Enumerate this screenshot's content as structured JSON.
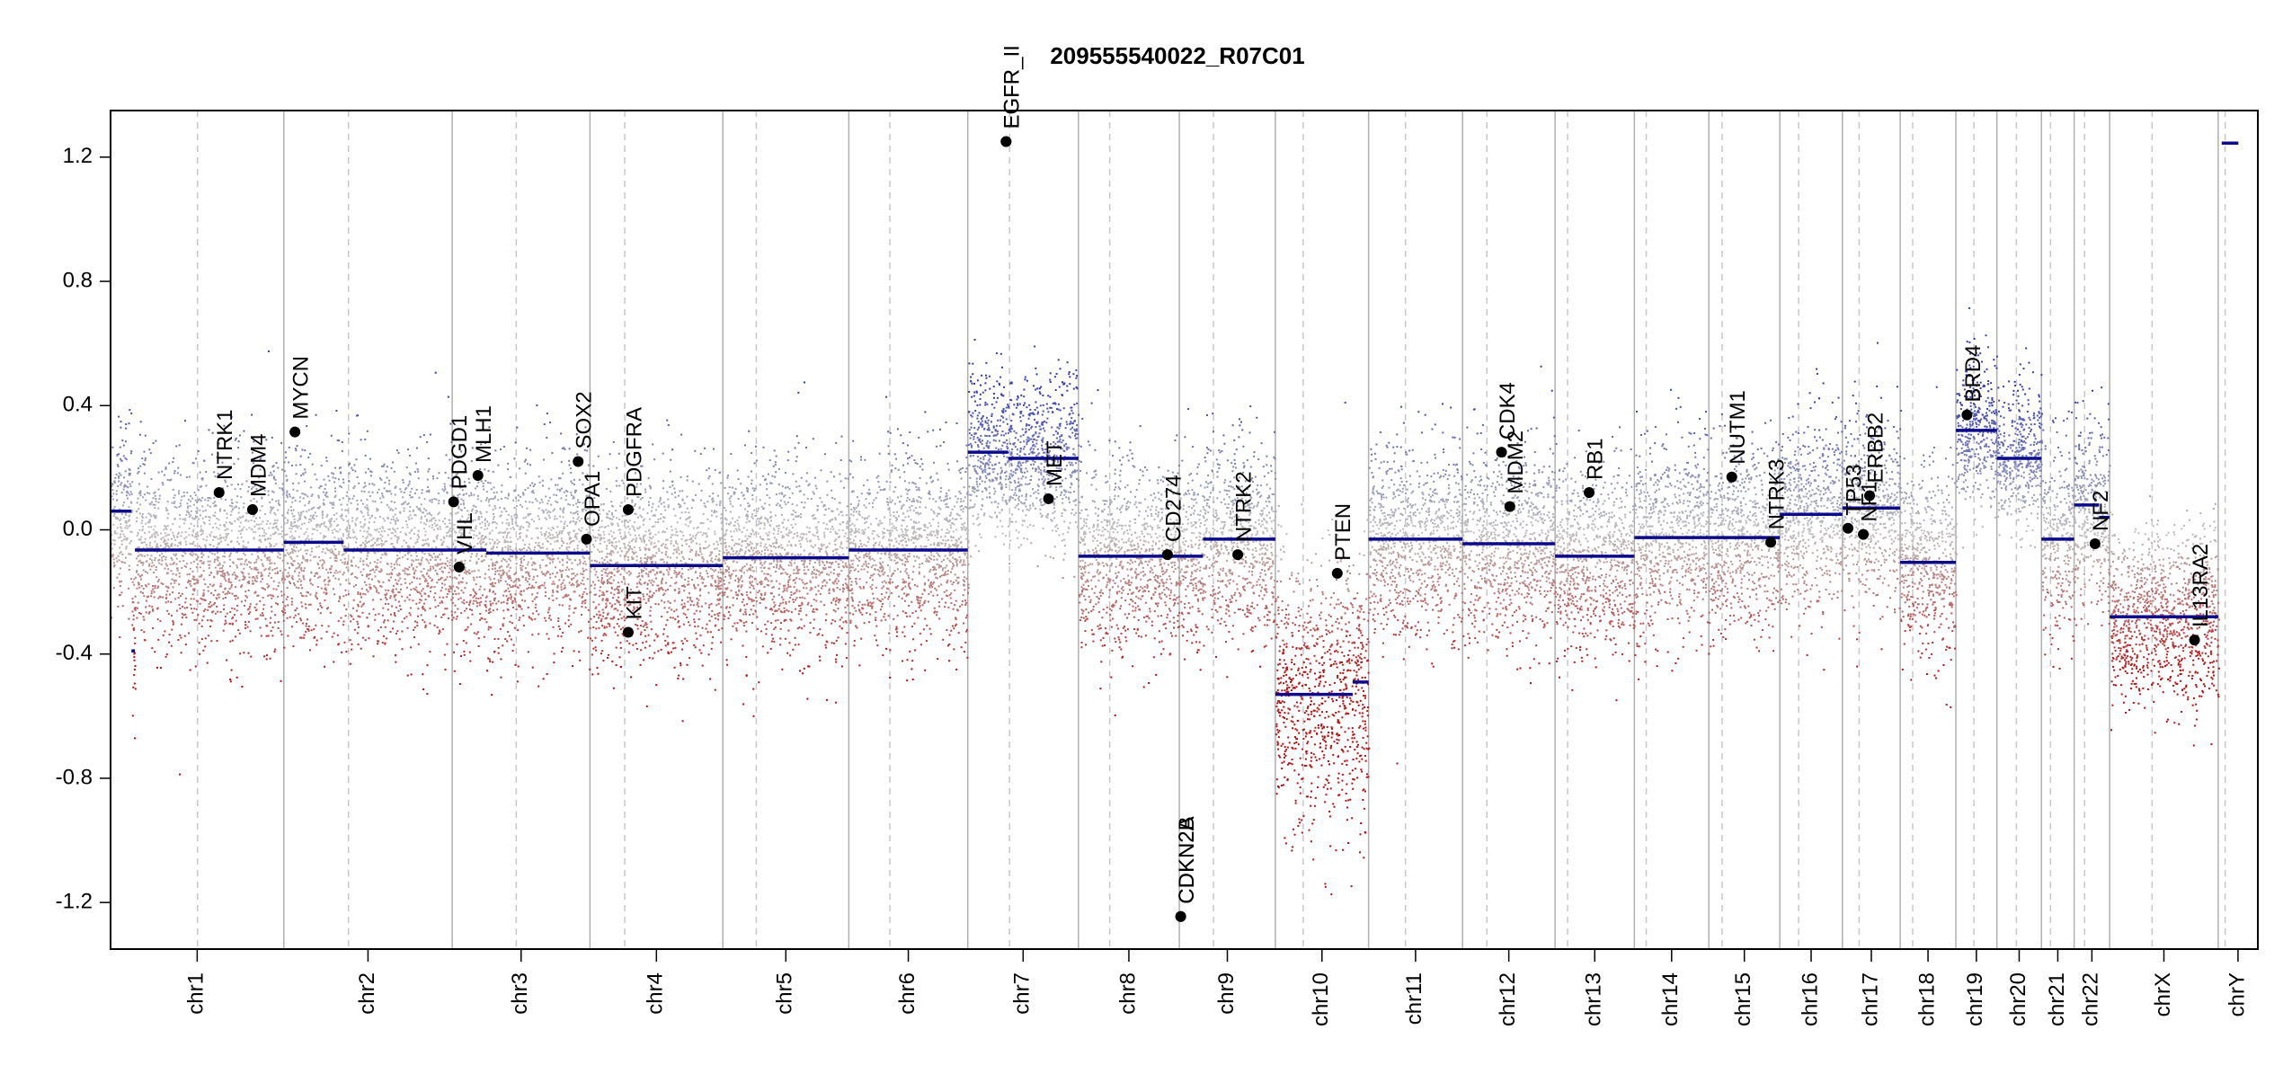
{
  "chart_data": {
    "type": "scatter",
    "title": "209555540022_R07C01",
    "xlabel": "",
    "ylabel": "",
    "ylim": [
      -1.35,
      1.35
    ],
    "y_ticks": [
      -1.2,
      -0.8,
      -0.4,
      0.0,
      0.4,
      0.8,
      1.2
    ],
    "y_tick_labels": [
      "-1.2",
      "-0.8",
      "-0.4",
      "0.0",
      "0.4",
      "0.8",
      "1.2"
    ],
    "grid": false,
    "colors": {
      "gain": "#3a46a8",
      "loss": "#b01a1a",
      "neutral": "#b4b4b4",
      "segment": "#0a0a8a",
      "gene_point": "#000000",
      "boundary": "#b0b0b0",
      "centromere": "#c8c8c8"
    },
    "chromosomes": [
      {
        "name": "chr1",
        "start": 0,
        "end": 249,
        "centromere": 125
      },
      {
        "name": "chr2",
        "start": 249,
        "end": 491,
        "centromere": 342
      },
      {
        "name": "chr3",
        "start": 491,
        "end": 689,
        "centromere": 583
      },
      {
        "name": "chr4",
        "start": 689,
        "end": 880,
        "centromere": 739
      },
      {
        "name": "chr5",
        "start": 880,
        "end": 1061,
        "centromere": 928
      },
      {
        "name": "chr6",
        "start": 1061,
        "end": 1232,
        "centromere": 1120
      },
      {
        "name": "chr7",
        "start": 1232,
        "end": 1391,
        "centromere": 1292
      },
      {
        "name": "chr8",
        "start": 1391,
        "end": 1536,
        "centromere": 1436
      },
      {
        "name": "chr9",
        "start": 1536,
        "end": 1674,
        "centromere": 1585
      },
      {
        "name": "chr10",
        "start": 1674,
        "end": 1808,
        "centromere": 1714
      },
      {
        "name": "chr11",
        "start": 1808,
        "end": 1943,
        "centromere": 1861
      },
      {
        "name": "chr12",
        "start": 1943,
        "end": 2076,
        "centromere": 1978
      },
      {
        "name": "chr13",
        "start": 2076,
        "end": 2190,
        "centromere": 2094
      },
      {
        "name": "chr14",
        "start": 2190,
        "end": 2297,
        "centromere": 2207
      },
      {
        "name": "chr15",
        "start": 2297,
        "end": 2399,
        "centromere": 2316
      },
      {
        "name": "chr16",
        "start": 2399,
        "end": 2489,
        "centromere": 2426
      },
      {
        "name": "chr17",
        "start": 2489,
        "end": 2572,
        "centromere": 2513
      },
      {
        "name": "chr18",
        "start": 2572,
        "end": 2652,
        "centromere": 2590
      },
      {
        "name": "chr19",
        "start": 2652,
        "end": 2711,
        "centromere": 2678
      },
      {
        "name": "chr20",
        "start": 2711,
        "end": 2775,
        "centromere": 2739
      },
      {
        "name": "chr21",
        "start": 2775,
        "end": 2822,
        "centromere": 2788
      },
      {
        "name": "chr22",
        "start": 2822,
        "end": 2873,
        "centromere": 2837
      },
      {
        "name": "chrX",
        "start": 2873,
        "end": 3029,
        "centromere": 2934
      },
      {
        "name": "chrY",
        "start": 3029,
        "end": 3086,
        "centromere": 3039
      }
    ],
    "segments": [
      {
        "chr": "chr1",
        "start": 0,
        "end": 30,
        "value": 0.06
      },
      {
        "chr": "chr1",
        "start": 30,
        "end": 35,
        "value": -0.39
      },
      {
        "chr": "chr1",
        "start": 35,
        "end": 249,
        "value": -0.065
      },
      {
        "chr": "chr2",
        "start": 249,
        "end": 335,
        "value": -0.04
      },
      {
        "chr": "chr2",
        "start": 335,
        "end": 491,
        "value": -0.065
      },
      {
        "chr": "chr3",
        "start": 491,
        "end": 540,
        "value": -0.065
      },
      {
        "chr": "chr3",
        "start": 540,
        "end": 689,
        "value": -0.075
      },
      {
        "chr": "chr4",
        "start": 689,
        "end": 880,
        "value": -0.115
      },
      {
        "chr": "chr5",
        "start": 880,
        "end": 1061,
        "value": -0.09
      },
      {
        "chr": "chr6",
        "start": 1061,
        "end": 1232,
        "value": -0.065
      },
      {
        "chr": "chr7",
        "start": 1232,
        "end": 1290,
        "value": 0.25
      },
      {
        "chr": "chr7",
        "start": 1290,
        "end": 1391,
        "value": 0.23
      },
      {
        "chr": "chr8",
        "start": 1391,
        "end": 1536,
        "value": -0.085
      },
      {
        "chr": "chr9",
        "start": 1536,
        "end": 1570,
        "value": -0.085
      },
      {
        "chr": "chr9",
        "start": 1570,
        "end": 1674,
        "value": -0.03
      },
      {
        "chr": "chr10",
        "start": 1674,
        "end": 1785,
        "value": -0.53
      },
      {
        "chr": "chr10",
        "start": 1785,
        "end": 1808,
        "value": -0.49
      },
      {
        "chr": "chr11",
        "start": 1808,
        "end": 1943,
        "value": -0.03
      },
      {
        "chr": "chr12",
        "start": 1943,
        "end": 2076,
        "value": -0.045
      },
      {
        "chr": "chr13",
        "start": 2076,
        "end": 2190,
        "value": -0.085
      },
      {
        "chr": "chr14",
        "start": 2190,
        "end": 2297,
        "value": -0.025
      },
      {
        "chr": "chr15",
        "start": 2297,
        "end": 2399,
        "value": -0.025
      },
      {
        "chr": "chr16",
        "start": 2399,
        "end": 2489,
        "value": 0.05
      },
      {
        "chr": "chr17",
        "start": 2489,
        "end": 2572,
        "value": 0.07
      },
      {
        "chr": "chr18",
        "start": 2572,
        "end": 2652,
        "value": -0.105
      },
      {
        "chr": "chr19",
        "start": 2652,
        "end": 2711,
        "value": 0.32
      },
      {
        "chr": "chr20",
        "start": 2711,
        "end": 2775,
        "value": 0.23
      },
      {
        "chr": "chr21",
        "start": 2775,
        "end": 2822,
        "value": -0.03
      },
      {
        "chr": "chr22",
        "start": 2822,
        "end": 2858,
        "value": 0.08
      },
      {
        "chr": "chr22",
        "start": 2858,
        "end": 2873,
        "value": 0.04
      },
      {
        "chr": "chrX",
        "start": 2873,
        "end": 3029,
        "value": -0.28
      },
      {
        "chr": "chrY",
        "start": 3034,
        "end": 3058,
        "value": 1.245
      }
    ],
    "genes": [
      {
        "name": "NTRK1",
        "x": 156,
        "y": 0.12
      },
      {
        "name": "MDM4",
        "x": 204,
        "y": 0.065
      },
      {
        "name": "MYCN",
        "x": 265,
        "y": 0.315
      },
      {
        "name": "PDGD1",
        "x": 493,
        "y": 0.09
      },
      {
        "name": "VHL",
        "x": 501,
        "y": -0.12
      },
      {
        "name": "MLH1",
        "x": 528,
        "y": 0.175
      },
      {
        "name": "SOX2",
        "x": 672,
        "y": 0.22
      },
      {
        "name": "OPA1",
        "x": 684,
        "y": -0.03
      },
      {
        "name": "PDGFRA",
        "x": 744,
        "y": 0.065
      },
      {
        "name": "KIT",
        "x": 744,
        "y": -0.33
      },
      {
        "name": "EGFR",
        "x": 1287,
        "y": 1.25
      },
      {
        "name": "EGFR_II",
        "x": 1287,
        "y": 1.25
      },
      {
        "name": "MET",
        "x": 1348,
        "y": 0.1
      },
      {
        "name": "CD274",
        "x": 1519,
        "y": -0.08
      },
      {
        "name": "CDKN2A",
        "x": 1538,
        "y": -1.245
      },
      {
        "name": "CDKN2B",
        "x": 1538,
        "y": -1.245
      },
      {
        "name": "NTRK2",
        "x": 1620,
        "y": -0.08
      },
      {
        "name": "PTEN",
        "x": 1763,
        "y": -0.14
      },
      {
        "name": "CDK4",
        "x": 1999,
        "y": 0.25
      },
      {
        "name": "MDM2",
        "x": 2011,
        "y": 0.075
      },
      {
        "name": "RB1",
        "x": 2125,
        "y": 0.12
      },
      {
        "name": "NUTM1",
        "x": 2330,
        "y": 0.17
      },
      {
        "name": "NTRK3",
        "x": 2386,
        "y": -0.04
      },
      {
        "name": "TP53",
        "x": 2497,
        "y": 0.005
      },
      {
        "name": "NF1",
        "x": 2519,
        "y": -0.015
      },
      {
        "name": "ERBB2",
        "x": 2528,
        "y": 0.11
      },
      {
        "name": "BRD4",
        "x": 2668,
        "y": 0.37
      },
      {
        "name": "NF2",
        "x": 2852,
        "y": -0.045
      },
      {
        "name": "IL13RA2",
        "x": 2995,
        "y": -0.355
      }
    ]
  }
}
